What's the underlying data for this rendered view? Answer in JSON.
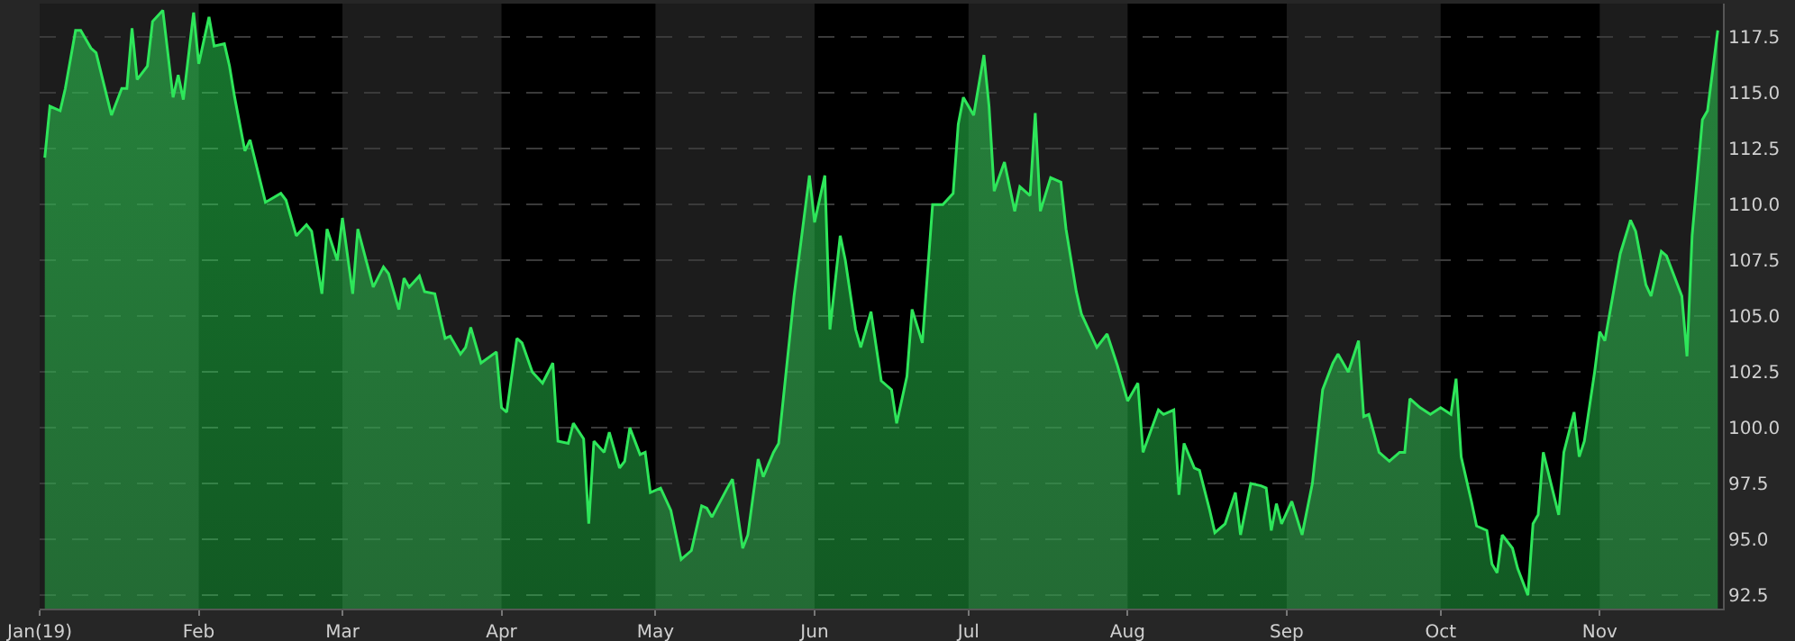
{
  "chart_data": {
    "type": "area",
    "x": [
      "2019-01-02",
      "2019-01-03",
      "2019-01-05",
      "2019-01-06",
      "2019-01-08",
      "2019-01-09",
      "2019-01-11",
      "2019-01-12",
      "2019-01-15",
      "2019-01-17",
      "2019-01-18",
      "2019-01-19",
      "2019-01-20",
      "2019-01-22",
      "2019-01-23",
      "2019-01-25",
      "2019-01-27",
      "2019-01-28",
      "2019-01-29",
      "2019-01-31",
      "2019-02-01",
      "2019-02-03",
      "2019-02-04",
      "2019-02-06",
      "2019-02-07",
      "2019-02-08",
      "2019-02-10",
      "2019-02-11",
      "2019-02-14",
      "2019-02-17",
      "2019-02-18",
      "2019-02-20",
      "2019-02-22",
      "2019-02-23",
      "2019-02-25",
      "2019-02-26",
      "2019-02-28",
      "2019-03-01",
      "2019-03-03",
      "2019-03-04",
      "2019-03-07",
      "2019-03-09",
      "2019-03-10",
      "2019-03-12",
      "2019-03-13",
      "2019-03-14",
      "2019-03-16",
      "2019-03-17",
      "2019-03-19",
      "2019-03-21",
      "2019-03-22",
      "2019-03-24",
      "2019-03-25",
      "2019-03-26",
      "2019-03-28",
      "2019-03-31",
      "2019-04-01",
      "2019-04-02",
      "2019-04-04",
      "2019-04-05",
      "2019-04-07",
      "2019-04-09",
      "2019-04-11",
      "2019-04-12",
      "2019-04-14",
      "2019-04-15",
      "2019-04-17",
      "2019-04-18",
      "2019-04-19",
      "2019-04-21",
      "2019-04-22",
      "2019-04-24",
      "2019-04-25",
      "2019-04-26",
      "2019-04-28",
      "2019-04-29",
      "2019-04-30",
      "2019-05-02",
      "2019-05-04",
      "2019-05-06",
      "2019-05-08",
      "2019-05-10",
      "2019-05-11",
      "2019-05-12",
      "2019-05-15",
      "2019-05-16",
      "2019-05-18",
      "2019-05-19",
      "2019-05-21",
      "2019-05-22",
      "2019-05-24",
      "2019-05-25",
      "2019-05-26",
      "2019-05-28",
      "2019-05-31",
      "2019-06-01",
      "2019-06-03",
      "2019-06-04",
      "2019-06-06",
      "2019-06-07",
      "2019-06-09",
      "2019-06-10",
      "2019-06-12",
      "2019-06-14",
      "2019-06-16",
      "2019-06-17",
      "2019-06-19",
      "2019-06-20",
      "2019-06-22",
      "2019-06-23",
      "2019-06-24",
      "2019-06-26",
      "2019-06-28",
      "2019-06-29",
      "2019-06-30",
      "2019-07-02",
      "2019-07-04",
      "2019-07-05",
      "2019-07-06",
      "2019-07-08",
      "2019-07-10",
      "2019-07-11",
      "2019-07-13",
      "2019-07-14",
      "2019-07-15",
      "2019-07-17",
      "2019-07-19",
      "2019-07-20",
      "2019-07-22",
      "2019-07-23",
      "2019-07-26",
      "2019-07-28",
      "2019-07-30",
      "2019-08-01",
      "2019-08-03",
      "2019-08-04",
      "2019-08-07",
      "2019-08-08",
      "2019-08-10",
      "2019-08-11",
      "2019-08-12",
      "2019-08-14",
      "2019-08-15",
      "2019-08-17",
      "2019-08-18",
      "2019-08-20",
      "2019-08-22",
      "2019-08-23",
      "2019-08-25",
      "2019-08-27",
      "2019-08-28",
      "2019-08-29",
      "2019-08-30",
      "2019-08-31",
      "2019-09-02",
      "2019-09-04",
      "2019-09-06",
      "2019-09-08",
      "2019-09-10",
      "2019-09-11",
      "2019-09-13",
      "2019-09-15",
      "2019-09-16",
      "2019-09-17",
      "2019-09-19",
      "2019-09-21",
      "2019-09-23",
      "2019-09-24",
      "2019-09-25",
      "2019-09-27",
      "2019-09-29",
      "2019-10-01",
      "2019-10-03",
      "2019-10-04",
      "2019-10-05",
      "2019-10-07",
      "2019-10-08",
      "2019-10-10",
      "2019-10-11",
      "2019-10-12",
      "2019-10-13",
      "2019-10-15",
      "2019-10-16",
      "2019-10-18",
      "2019-10-19",
      "2019-10-20",
      "2019-10-21",
      "2019-10-24",
      "2019-10-25",
      "2019-10-27",
      "2019-10-28",
      "2019-10-29",
      "2019-10-31",
      "2019-11-01",
      "2019-11-02",
      "2019-11-05",
      "2019-11-07",
      "2019-11-08",
      "2019-11-10",
      "2019-11-11",
      "2019-11-13",
      "2019-11-14",
      "2019-11-17",
      "2019-11-18",
      "2019-11-19",
      "2019-11-21",
      "2019-11-22",
      "2019-11-24"
    ],
    "series": [
      {
        "color": "#2ee65a",
        "values": [
          112.1,
          114.4,
          114.2,
          115.2,
          117.8,
          117.8,
          117.0,
          116.8,
          114.0,
          115.2,
          115.2,
          117.9,
          115.6,
          116.2,
          118.2,
          118.7,
          114.8,
          115.8,
          114.7,
          118.6,
          116.3,
          118.4,
          117.1,
          117.2,
          116.2,
          114.8,
          112.4,
          112.9,
          110.1,
          110.5,
          110.2,
          108.6,
          109.1,
          108.8,
          106.0,
          108.9,
          107.5,
          109.4,
          106.0,
          108.9,
          106.3,
          107.2,
          106.9,
          105.3,
          106.7,
          106.3,
          106.8,
          106.1,
          106.0,
          104.0,
          104.1,
          103.3,
          103.6,
          104.5,
          102.9,
          103.4,
          100.9,
          100.7,
          104.0,
          103.8,
          102.5,
          102.0,
          102.9,
          99.4,
          99.3,
          100.2,
          99.5,
          95.7,
          99.4,
          98.9,
          99.8,
          98.2,
          98.5,
          100.0,
          98.8,
          98.9,
          97.1,
          97.3,
          96.3,
          94.1,
          94.5,
          96.5,
          96.4,
          96.0,
          97.3,
          97.7,
          94.6,
          95.2,
          98.6,
          97.8,
          98.9,
          99.3,
          101.5,
          105.9,
          111.3,
          109.2,
          111.3,
          104.4,
          108.6,
          107.5,
          104.4,
          103.6,
          105.2,
          102.1,
          101.7,
          100.2,
          102.3,
          105.3,
          103.8,
          106.9,
          110.0,
          110.0,
          110.5,
          113.6,
          114.8,
          114.0,
          116.7,
          114.4,
          110.6,
          111.9,
          109.7,
          110.8,
          110.4,
          114.1,
          109.7,
          111.2,
          111.0,
          108.9,
          106.1,
          105.1,
          103.6,
          104.2,
          102.8,
          101.2,
          102.0,
          98.9,
          100.8,
          100.6,
          100.8,
          97.0,
          99.3,
          98.2,
          98.1,
          96.3,
          95.3,
          95.7,
          97.1,
          95.2,
          97.5,
          97.4,
          97.3,
          95.4,
          96.6,
          95.7,
          96.7,
          95.2,
          97.5,
          101.7,
          102.9,
          103.3,
          102.5,
          103.9,
          100.5,
          100.6,
          98.9,
          98.5,
          98.9,
          98.9,
          101.3,
          100.9,
          100.6,
          100.9,
          100.6,
          102.2,
          98.7,
          96.7,
          95.6,
          95.4,
          93.9,
          93.5,
          95.2,
          94.6,
          93.7,
          92.5,
          95.7,
          96.1,
          98.9,
          96.1,
          98.9,
          100.7,
          98.7,
          99.4,
          102.5,
          104.3,
          103.9,
          107.8,
          109.3,
          108.8,
          106.4,
          105.9,
          107.9,
          107.7,
          105.9,
          103.2,
          108.6,
          113.8,
          114.2,
          117.8
        ]
      }
    ],
    "xlim": [
      "2019-01-01",
      "2019-11-25"
    ],
    "xticks": [
      {
        "value": "2019-01-01",
        "label": "Jan(19)"
      },
      {
        "value": "2019-02-01",
        "label": "Feb"
      },
      {
        "value": "2019-03-01",
        "label": "Mar"
      },
      {
        "value": "2019-04-01",
        "label": "Apr"
      },
      {
        "value": "2019-05-01",
        "label": "May"
      },
      {
        "value": "2019-06-01",
        "label": "Jun"
      },
      {
        "value": "2019-07-01",
        "label": "Jul"
      },
      {
        "value": "2019-08-01",
        "label": "Aug"
      },
      {
        "value": "2019-09-01",
        "label": "Sep"
      },
      {
        "value": "2019-10-01",
        "label": "Oct"
      },
      {
        "value": "2019-11-01",
        "label": "Nov"
      }
    ],
    "ylim": [
      91.9,
      119
    ],
    "yticks": [
      {
        "value": 92.5,
        "label": "92.5"
      },
      {
        "value": 95,
        "label": "95.0"
      },
      {
        "value": 97.5,
        "label": "97.5"
      },
      {
        "value": 100,
        "label": "100.0"
      },
      {
        "value": 102.5,
        "label": "102.5"
      },
      {
        "value": 105,
        "label": "105.0"
      },
      {
        "value": 107.5,
        "label": "107.5"
      },
      {
        "value": 110,
        "label": "110.0"
      },
      {
        "value": 112.5,
        "label": "112.5"
      },
      {
        "value": 115,
        "label": "115.0"
      },
      {
        "value": 117.5,
        "label": "117.5"
      }
    ],
    "grid": "y",
    "bands": [
      {
        "axis": "x",
        "from": "2019-01-01",
        "to": "2019-02-01",
        "color": "#1c1c1c"
      },
      {
        "axis": "x",
        "from": "2019-03-01",
        "to": "2019-04-01",
        "color": "#1c1c1c"
      },
      {
        "axis": "x",
        "from": "2019-05-01",
        "to": "2019-06-01",
        "color": "#1c1c1c"
      },
      {
        "axis": "x",
        "from": "2019-07-01",
        "to": "2019-08-01",
        "color": "#1c1c1c"
      },
      {
        "axis": "x",
        "from": "2019-09-01",
        "to": "2019-10-01",
        "color": "#1c1c1c"
      },
      {
        "axis": "x",
        "from": "2019-11-01",
        "to": "2019-11-25",
        "color": "#1c1c1c"
      }
    ]
  }
}
